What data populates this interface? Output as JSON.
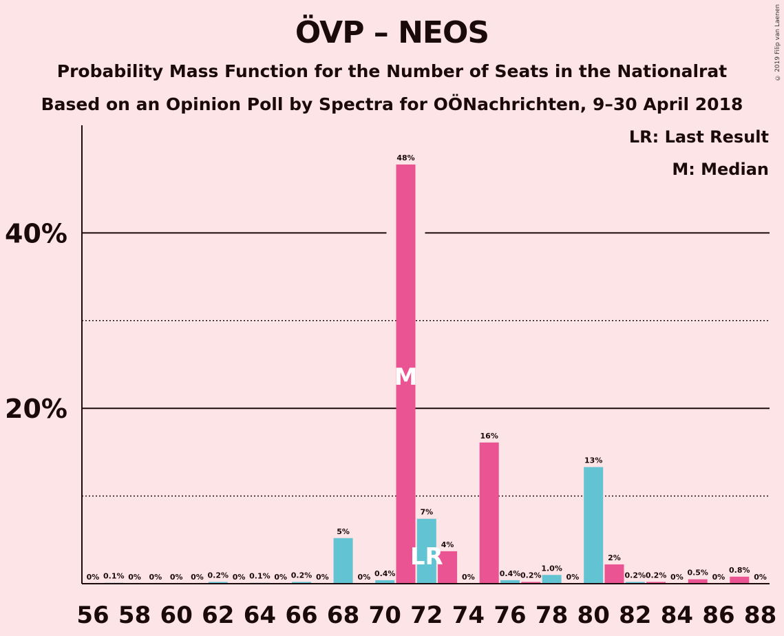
{
  "title": "ÖVP – NEOS",
  "subtitle": "Probability Mass Function for the Number of Seats in the Nationalrat",
  "subtitle2": "Based on an Opinion Poll by Spectra for OÖNachrichten, 9–30 April 2018",
  "copyright": "© 2019 Filip van Laenen",
  "legend": {
    "last_result": "LR: Last Result",
    "median": "M: Median"
  },
  "colors": {
    "background": "#fde4e7",
    "bar_teal": "#62c4d2",
    "bar_pink": "#ea5492",
    "text": "#1a0a0c"
  },
  "chart_data": {
    "type": "bar",
    "x": [
      56,
      57,
      58,
      59,
      60,
      61,
      62,
      63,
      64,
      65,
      66,
      67,
      68,
      69,
      70,
      71,
      72,
      73,
      74,
      75,
      76,
      77,
      78,
      79,
      80,
      81,
      82,
      83,
      84,
      85,
      86,
      87,
      88
    ],
    "values": [
      0,
      0.1,
      0,
      0,
      0,
      0,
      0.2,
      0,
      0.1,
      0,
      0.2,
      0,
      5.2,
      0,
      0.4,
      47.8,
      7.4,
      3.7,
      0,
      16.1,
      0.4,
      0.2,
      1.0,
      0,
      13.3,
      2.2,
      0.2,
      0.2,
      0,
      0.5,
      0,
      0.8,
      0
    ],
    "labels": [
      "0%",
      "0.1%",
      "0%",
      "0%",
      "0%",
      "0%",
      "0.2%",
      "0%",
      "0.1%",
      "0%",
      "0.2%",
      "0%",
      "5%",
      "0%",
      "0.4%",
      "48%",
      "7%",
      "4%",
      "0%",
      "16%",
      "0.4%",
      "0.2%",
      "1.0%",
      "0%",
      "13%",
      "2%",
      "0.2%",
      "0.2%",
      "0%",
      "0.5%",
      "0%",
      "0.8%",
      "0%"
    ],
    "bar_colors": [
      "teal",
      "teal",
      "teal",
      "teal",
      "teal",
      "teal",
      "teal",
      "teal",
      "teal",
      "teal",
      "teal",
      "teal",
      "teal",
      "teal",
      "teal",
      "pink",
      "teal",
      "pink",
      "pink",
      "pink",
      "teal",
      "pink",
      "teal",
      "teal",
      "teal",
      "pink",
      "teal",
      "pink",
      "teal",
      "pink",
      "teal",
      "pink",
      "teal"
    ],
    "x_ticks": [
      56,
      58,
      60,
      62,
      64,
      66,
      68,
      70,
      72,
      74,
      76,
      78,
      80,
      82,
      84,
      86,
      88
    ],
    "y_ticks": [
      {
        "value": 20,
        "label": "20%"
      },
      {
        "value": 40,
        "label": "40%"
      }
    ],
    "ylim": [
      0,
      52
    ],
    "gridlines": {
      "solid": [
        20,
        40
      ],
      "dotted": [
        10,
        30
      ]
    },
    "median_seat": 71,
    "median_label": "M",
    "last_result_seat": 72,
    "last_result_label": "LR"
  }
}
